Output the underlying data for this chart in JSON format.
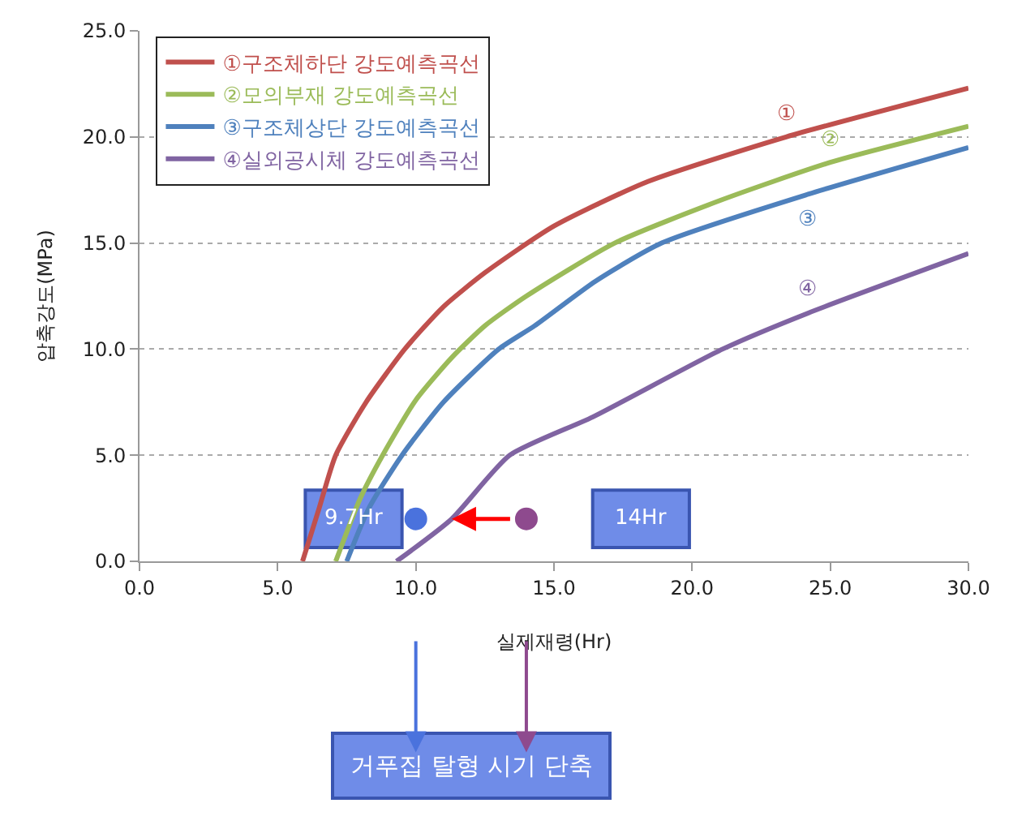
{
  "chart_data": {
    "type": "line",
    "xlabel": "실제재령(Hr)",
    "ylabel": "압축강도(MPa)",
    "xlim": [
      0,
      30
    ],
    "xticks": [
      {
        "value": 0,
        "label": "0.0"
      },
      {
        "value": 5,
        "label": "5.0"
      },
      {
        "value": 10,
        "label": "10.0"
      },
      {
        "value": 15,
        "label": "15.0"
      },
      {
        "value": 20,
        "label": "20.0"
      },
      {
        "value": 25,
        "label": "25.0"
      },
      {
        "value": 30,
        "label": "30.0"
      }
    ],
    "ylim": [
      0,
      25
    ],
    "yticks": [
      {
        "value": 0,
        "label": "0.0"
      },
      {
        "value": 5,
        "label": "5.0"
      },
      {
        "value": 10,
        "label": "10.0"
      },
      {
        "value": 15,
        "label": "15.0"
      },
      {
        "value": 20,
        "label": "20.0"
      },
      {
        "value": 25,
        "label": "25.0"
      }
    ],
    "grid": "y",
    "legend": "top left",
    "line_style": "solid",
    "series": [
      {
        "name": "①구조체하단 강도예측곡선",
        "color": "#c0504d",
        "x": [
          5.9,
          6.5,
          7.1,
          8.2,
          9.6,
          11,
          12.5,
          15,
          18.4,
          23.4,
          30
        ],
        "values": [
          0,
          2.5,
          5,
          7.5,
          10,
          12,
          13.6,
          15.8,
          17.9,
          20,
          22.3
        ]
      },
      {
        "name": "②모의부재 강도예측곡선",
        "color": "#9bbb59",
        "x": [
          7.1,
          8,
          8.8,
          10,
          11.3,
          12.5,
          14,
          17.2,
          21,
          25,
          30
        ],
        "values": [
          0,
          3,
          5,
          7.6,
          9.6,
          11.1,
          12.5,
          15,
          17,
          18.8,
          20.5
        ]
      },
      {
        "name": "③구조체상단 강도예측곡선",
        "color": "#4f81bd",
        "x": [
          7.5,
          8.3,
          9.5,
          11,
          13,
          14.3,
          16.5,
          18.9,
          24.2,
          30
        ],
        "values": [
          0,
          2.5,
          5,
          7.5,
          10,
          11.1,
          13.2,
          15,
          17.3,
          19.5
        ]
      },
      {
        "name": "④실외공시체 강도예측곡선",
        "color": "#8064a2",
        "x": [
          9.3,
          11.3,
          13.4,
          16.4,
          21.1,
          24.2,
          30
        ],
        "values": [
          0,
          2,
          5,
          6.8,
          10,
          11.7,
          14.5
        ]
      },
      {
        "type": "scatter",
        "color": "#4a72dd",
        "x": [
          10
        ],
        "values": [
          2
        ]
      },
      {
        "type": "scatter",
        "color": "#8e4a8e",
        "x": [
          14
        ],
        "values": [
          2
        ]
      }
    ],
    "annotations": [
      "①",
      "②",
      "③",
      "④",
      "9.7Hr",
      "14Hr",
      "거푸집 탈형 시기 단축"
    ]
  }
}
